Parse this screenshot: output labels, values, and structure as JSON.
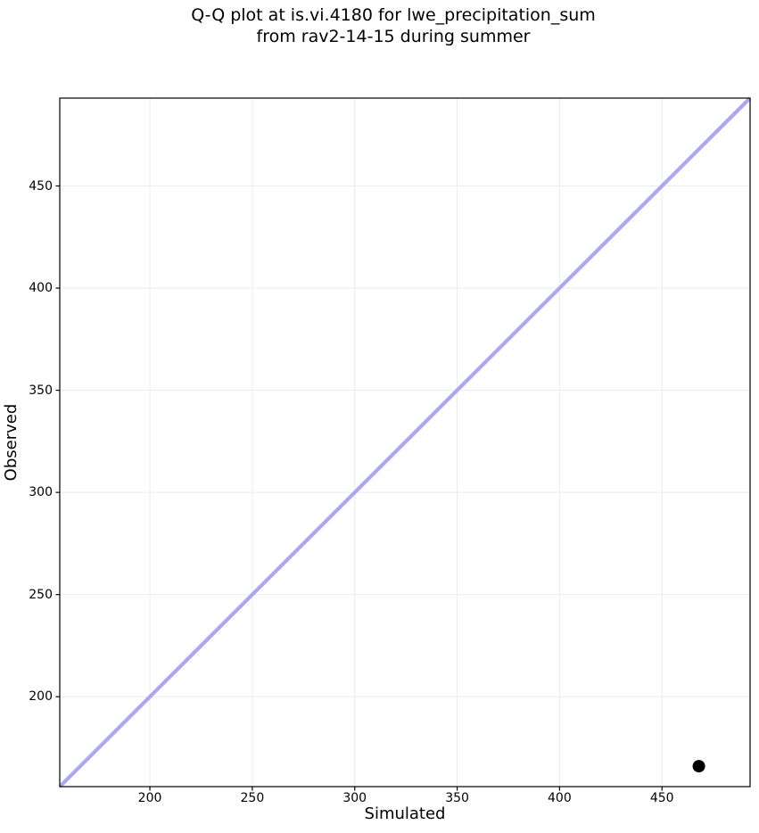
{
  "title": {
    "line1": "Q-Q plot at is.vi.4180 for lwe_precipitation_sum",
    "line2": "from rav2-14-15 during summer"
  },
  "chart_data": {
    "type": "scatter",
    "title": "Q-Q plot at is.vi.4180 for lwe_precipitation_sum\nfrom rav2-14-15 during summer",
    "xlabel": "Simulated",
    "ylabel": "Observed",
    "xlim": [
      156,
      493
    ],
    "ylim": [
      156,
      493
    ],
    "xticks": [
      200,
      250,
      300,
      350,
      400,
      450
    ],
    "yticks": [
      200,
      250,
      300,
      350,
      400,
      450
    ],
    "grid": true,
    "legend": "none",
    "colors": {
      "identity_line": "#aaa8f0",
      "point": "#000000",
      "grid": "#ececec",
      "spine": "#000000",
      "background": "#ffffff"
    },
    "series": [
      {
        "name": "identity-line",
        "type": "line",
        "color": "#aaa8f0",
        "line_width": 4.2,
        "points": [
          [
            156,
            156
          ],
          [
            493,
            493
          ]
        ]
      },
      {
        "name": "observed-vs-simulated-quantiles",
        "type": "scatter",
        "color": "#000000",
        "marker": "circle",
        "marker_radius": 7,
        "points": [
          [
            468,
            166
          ]
        ]
      }
    ]
  }
}
